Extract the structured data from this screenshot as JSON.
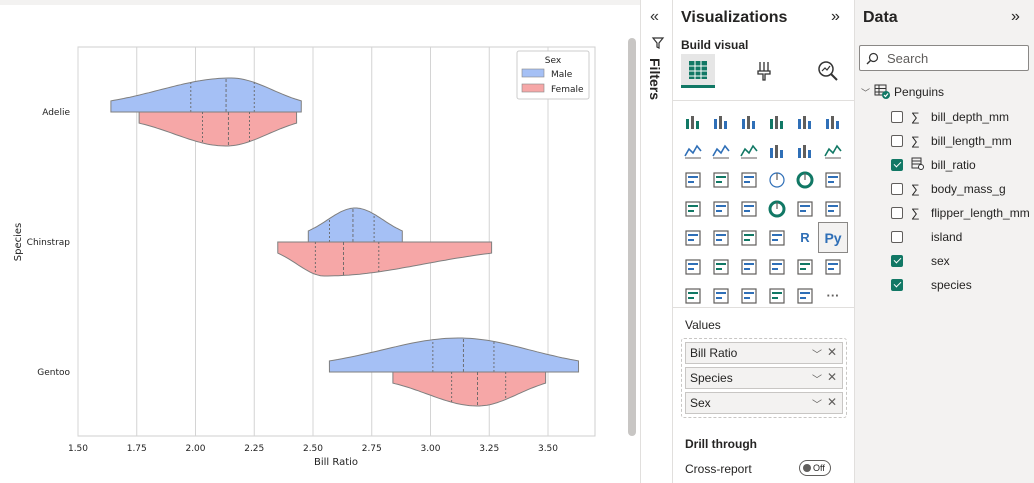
{
  "chart_data": {
    "type": "violin",
    "xlabel": "Bill Ratio",
    "ylabel": "Species",
    "xlim": [
      1.5,
      3.7
    ],
    "xticks": [
      "1.50",
      "1.75",
      "2.00",
      "2.25",
      "2.50",
      "2.75",
      "3.00",
      "3.25",
      "3.50"
    ],
    "grid": "vertical",
    "categories": [
      "Adelie",
      "Chinstrap",
      "Gentoo"
    ],
    "legend": {
      "title": "Sex",
      "placement": "top-right"
    },
    "series": [
      {
        "name": "Male",
        "color": "#a5c0f5",
        "side": "upper",
        "violins": [
          {
            "min": 1.64,
            "max": 2.45,
            "quartiles": [
              1.98,
              2.13,
              2.25
            ],
            "peak": 2.15
          },
          {
            "min": 2.48,
            "max": 2.88,
            "quartiles": [
              2.57,
              2.67,
              2.76
            ],
            "peak": 2.68
          },
          {
            "min": 2.57,
            "max": 3.63,
            "quartiles": [
              3.01,
              3.14,
              3.27
            ],
            "peak": 3.12
          }
        ]
      },
      {
        "name": "Female",
        "color": "#f6a7a7",
        "side": "lower",
        "violins": [
          {
            "min": 1.76,
            "max": 2.43,
            "quartiles": [
              2.03,
              2.14,
              2.23
            ],
            "peak": 2.13
          },
          {
            "min": 2.35,
            "max": 3.26,
            "quartiles": [
              2.51,
              2.63,
              2.78
            ],
            "peak": 2.55
          },
          {
            "min": 2.84,
            "max": 3.49,
            "quartiles": [
              3.09,
              3.2,
              3.32
            ],
            "peak": 3.2
          }
        ]
      }
    ]
  },
  "filters": {
    "label": "Filters"
  },
  "visualizations": {
    "title": "Visualizations",
    "build_visual": "Build visual",
    "values_label": "Values",
    "values": [
      {
        "label": "Bill Ratio"
      },
      {
        "label": "Species"
      },
      {
        "label": "Sex"
      }
    ],
    "drill_through": "Drill through",
    "cross_report": "Cross-report",
    "toggle_state": "Off",
    "glyph_r": "R",
    "glyph_py": "Py",
    "glyph_more": "···"
  },
  "data_pane": {
    "title": "Data",
    "search_placeholder": "Search",
    "table": "Penguins",
    "fields": [
      {
        "name": "bill_depth_mm",
        "checked": false,
        "type": "sigma"
      },
      {
        "name": "bill_length_mm",
        "checked": false,
        "type": "sigma"
      },
      {
        "name": "bill_ratio",
        "checked": true,
        "type": "calc"
      },
      {
        "name": "body_mass_g",
        "checked": false,
        "type": "sigma"
      },
      {
        "name": "flipper_length_mm",
        "checked": false,
        "type": "sigma"
      },
      {
        "name": "island",
        "checked": false,
        "type": "none"
      },
      {
        "name": "sex",
        "checked": true,
        "type": "none"
      },
      {
        "name": "species",
        "checked": true,
        "type": "none"
      }
    ]
  }
}
